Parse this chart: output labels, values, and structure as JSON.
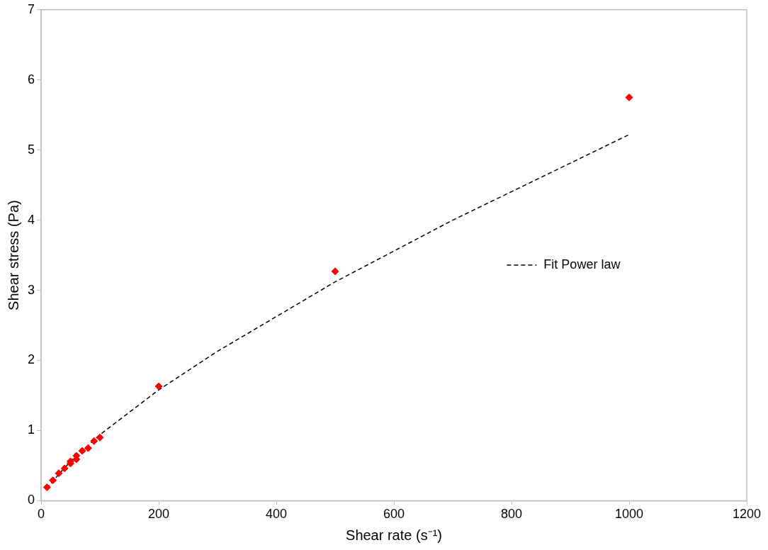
{
  "chart_data": {
    "type": "scatter",
    "xlabel": "Shear rate (s⁻¹)",
    "ylabel": "Shear stress (Pa)",
    "xlim": [
      0,
      1200
    ],
    "xticks": [
      0,
      200,
      400,
      600,
      800,
      1000,
      1200
    ],
    "ylim": [
      0,
      7
    ],
    "yticks": [
      0,
      1,
      2,
      3,
      4,
      5,
      6,
      7
    ],
    "grid": false,
    "legend": "right",
    "series": [
      {
        "color": "#ff0000",
        "marker": "diamond",
        "x": [
          10,
          20,
          30,
          40,
          50,
          50,
          60,
          60,
          70,
          80,
          90,
          100,
          200,
          500,
          1000
        ],
        "values": [
          0.19,
          0.29,
          0.39,
          0.46,
          0.53,
          0.56,
          0.59,
          0.64,
          0.71,
          0.75,
          0.85,
          0.9,
          1.63,
          3.27,
          5.75
        ]
      },
      {
        "type": "line",
        "name": "Fit Power law",
        "color": "#000000",
        "line_style": "dashed",
        "marker": "none",
        "x": [
          10,
          20,
          50,
          100,
          200,
          300,
          500,
          700,
          1000
        ],
        "values": [
          0.17,
          0.28,
          0.56,
          0.94,
          1.58,
          2.13,
          3.12,
          4.0,
          5.22
        ]
      }
    ]
  }
}
